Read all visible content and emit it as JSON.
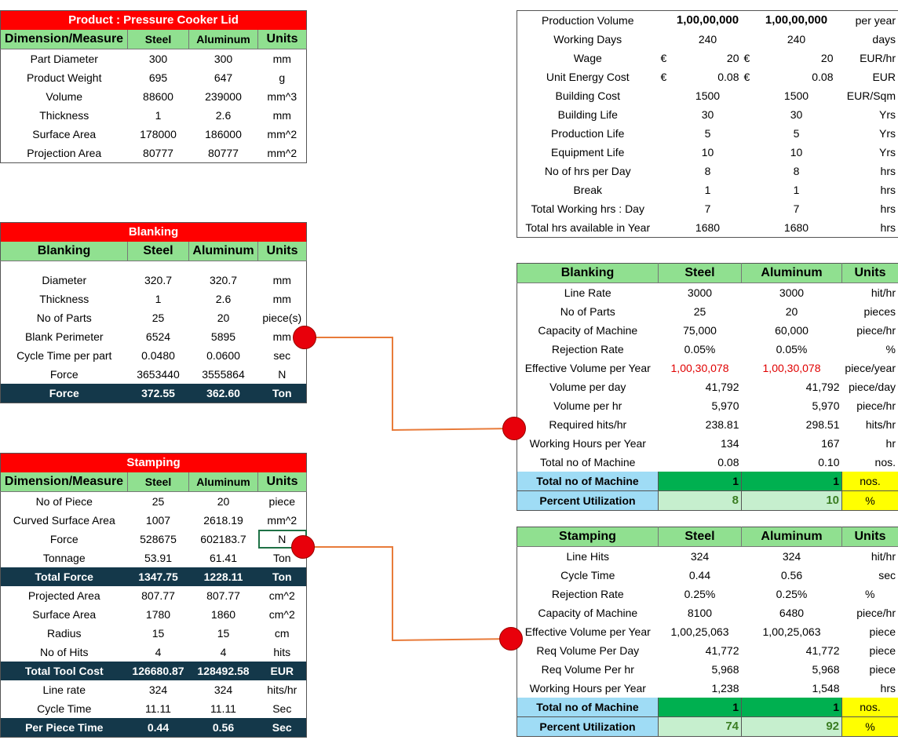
{
  "product": {
    "title": "Product : Pressure Cooker Lid",
    "headers": [
      "Dimension/Measure",
      "Steel",
      "Aluminum",
      "Units"
    ],
    "rows": [
      [
        "Part Diameter",
        "300",
        "300",
        "mm"
      ],
      [
        "Product Weight",
        "695",
        "647",
        "g"
      ],
      [
        "Volume",
        "88600",
        "239000",
        "mm^3"
      ],
      [
        "Thickness",
        "1",
        "2.6",
        "mm"
      ],
      [
        "Surface Area",
        "178000",
        "186000",
        "mm^2"
      ],
      [
        "Projection Area",
        "80777",
        "80777",
        "mm^2"
      ]
    ]
  },
  "blanking_left": {
    "title": "Blanking",
    "headers": [
      "Blanking",
      "Steel",
      "Aluminum",
      "Units"
    ],
    "rows": [
      [
        "Diameter",
        "320.7",
        "320.7",
        "mm"
      ],
      [
        "Thickness",
        "1",
        "2.6",
        "mm"
      ],
      [
        "No of Parts",
        "25",
        "20",
        "piece(s)"
      ],
      [
        "Blank Perimeter",
        "6524",
        "5895",
        "mm"
      ],
      [
        "Cycle Time per part",
        "0.0480",
        "0.0600",
        "sec"
      ],
      [
        "Force",
        "3653440",
        "3555864",
        "N"
      ]
    ],
    "total": [
      "Force",
      "372.55",
      "362.60",
      "Ton"
    ]
  },
  "stamping_left": {
    "title": "Stamping",
    "headers": [
      "Dimension/Measure",
      "Steel",
      "Aluminum",
      "Units"
    ],
    "rows1": [
      [
        "No of Piece",
        "25",
        "20",
        "piece"
      ],
      [
        "Curved Surface Area",
        "1007",
        "2618.19",
        "mm^2"
      ],
      [
        "Force",
        "528675",
        "602183.7",
        "N"
      ],
      [
        "Tonnage",
        "53.91",
        "61.41",
        "Ton"
      ]
    ],
    "total1": [
      "Total Force",
      "1347.75",
      "1228.11",
      "Ton"
    ],
    "rows2": [
      [
        "Projected Area",
        "807.77",
        "807.77",
        "cm^2"
      ],
      [
        "Surface Area",
        "1780",
        "1860",
        "cm^2"
      ],
      [
        "Radius",
        "15",
        "15",
        "cm"
      ],
      [
        "No of Hits",
        "4",
        "4",
        "hits"
      ]
    ],
    "total2": [
      "Total Tool Cost",
      "126680.87",
      "128492.58",
      "EUR"
    ],
    "rows3": [
      [
        "Line rate",
        "324",
        "324",
        "hits/hr"
      ],
      [
        "Cycle Time",
        "11.11",
        "11.11",
        "Sec"
      ]
    ],
    "total3": [
      "Per Piece Time",
      "0.44",
      "0.56",
      "Sec"
    ]
  },
  "production": {
    "rows": [
      [
        "Production Volume",
        "",
        "1,00,00,000",
        "",
        "1,00,00,000",
        "per year"
      ],
      [
        "Working Days",
        "",
        "240",
        "",
        "240",
        "days"
      ],
      [
        "Wage",
        "€",
        "20",
        "€",
        "20",
        "EUR/hr"
      ],
      [
        "Unit Energy Cost",
        "€",
        "0.08",
        "€",
        "0.08",
        "EUR"
      ],
      [
        "Building Cost",
        "",
        "1500",
        "",
        "1500",
        "EUR/Sqm"
      ],
      [
        "Building Life",
        "",
        "30",
        "",
        "30",
        "Yrs"
      ],
      [
        "Production Life",
        "",
        "5",
        "",
        "5",
        "Yrs"
      ],
      [
        "Equipment Life",
        "",
        "10",
        "",
        "10",
        "Yrs"
      ],
      [
        "No of hrs per Day",
        "",
        "8",
        "",
        "8",
        "hrs"
      ],
      [
        "Break",
        "",
        "1",
        "",
        "1",
        "hrs"
      ],
      [
        "Total Working hrs : Day",
        "",
        "7",
        "",
        "7",
        "hrs"
      ],
      [
        "Total hrs available in Year",
        "",
        "1680",
        "",
        "1680",
        "hrs"
      ]
    ]
  },
  "blanking_right": {
    "headers": [
      "Blanking",
      "Steel",
      "Aluminum",
      "Units"
    ],
    "rows": [
      [
        "Line Rate",
        "3000",
        "3000",
        "hit/hr"
      ],
      [
        "No of Parts",
        "25",
        "20",
        "pieces"
      ],
      [
        "Capacity of Machine",
        "75,000",
        "60,000",
        "piece/hr"
      ],
      [
        "Rejection Rate",
        "0.05%",
        "0.05%",
        "%"
      ],
      [
        "Effective Volume per Year",
        "1,00,30,078",
        "1,00,30,078",
        "piece/year"
      ],
      [
        "Volume per day",
        "41,792",
        "41,792",
        "piece/day"
      ],
      [
        "Volume per hr",
        "5,970",
        "5,970",
        "piece/hr"
      ],
      [
        "Required hits/hr",
        "238.81",
        "298.51",
        "hits/hr"
      ],
      [
        "Working Hours per Year",
        "134",
        "167",
        "hr"
      ],
      [
        "Total no of Machine",
        "0.08",
        "0.10",
        "nos."
      ]
    ],
    "machines": [
      "Total no of Machine",
      "1",
      "1",
      "nos."
    ],
    "utilization": [
      "Percent Utilization",
      "8",
      "10",
      "%"
    ]
  },
  "stamping_right": {
    "headers": [
      "Stamping",
      "Steel",
      "Aluminum",
      "Units"
    ],
    "rows": [
      [
        "Line Hits",
        "324",
        "324",
        "hit/hr"
      ],
      [
        "Cycle Time",
        "0.44",
        "0.56",
        "sec"
      ],
      [
        "Rejection Rate",
        "0.25%",
        "0.25%",
        "%"
      ],
      [
        "Capacity of Machine",
        "8100",
        "6480",
        "piece/hr"
      ],
      [
        "Effective Volume per Year",
        "1,00,25,063",
        "1,00,25,063",
        "piece"
      ],
      [
        "Req Volume Per Day",
        "41,772",
        "41,772",
        "piece"
      ],
      [
        "Req Volume Per hr",
        "5,968",
        "5,968",
        "piece"
      ],
      [
        "Working Hours per Year",
        "1,238",
        "1,548",
        "hrs"
      ]
    ],
    "machines": [
      "Total no of Machine",
      "1",
      "1",
      "nos."
    ],
    "utilization": [
      "Percent Utilization",
      "74",
      "92",
      "%"
    ]
  },
  "colors": {
    "title_red": "#ff0000",
    "header_green": "#90e090",
    "dark_total": "#14384a",
    "connector": "#e87b3a",
    "dot": "#e8000b"
  }
}
